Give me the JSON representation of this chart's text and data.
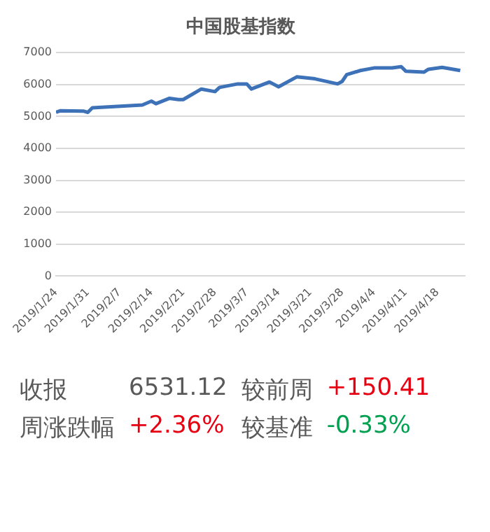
{
  "chart_data": [
    {
      "type": "line",
      "title": "中国股基指数",
      "x": [
        "2019-01-24",
        "2019-01-25",
        "2019-01-30",
        "2019-01-31",
        "2019-02-01",
        "2019-02-12",
        "2019-02-14",
        "2019-02-15",
        "2019-02-18",
        "2019-02-20",
        "2019-02-21",
        "2019-02-25",
        "2019-02-28",
        "2019-03-01",
        "2019-03-05",
        "2019-03-07",
        "2019-03-08",
        "2019-03-12",
        "2019-03-14",
        "2019-03-18",
        "2019-03-22",
        "2019-03-27",
        "2019-03-28",
        "2019-03-29",
        "2019-04-01",
        "2019-04-04",
        "2019-04-08",
        "2019-04-10",
        "2019-04-11",
        "2019-04-15",
        "2019-04-16",
        "2019-04-19",
        "2019-04-23"
      ],
      "series": [
        {
          "color": "#3d72b8",
          "values": [
            5130,
            5180,
            5170,
            5130,
            5270,
            5360,
            5480,
            5400,
            5570,
            5530,
            5530,
            5860,
            5780,
            5910,
            6020,
            6020,
            5860,
            6080,
            5930,
            6240,
            6180,
            6020,
            6100,
            6310,
            6440,
            6520,
            6520,
            6560,
            6420,
            6390,
            6480,
            6540,
            6440
          ]
        }
      ],
      "xlim": [
        "2019-01-24",
        "2019-04-24"
      ],
      "xticks": [
        {
          "value": "2019-01-24",
          "label": "2019/1/24"
        },
        {
          "value": "2019-01-31",
          "label": "2019/1/31"
        },
        {
          "value": "2019-02-07",
          "label": "2019/2/7"
        },
        {
          "value": "2019-02-14",
          "label": "2019/2/14"
        },
        {
          "value": "2019-02-21",
          "label": "2019/2/21"
        },
        {
          "value": "2019-02-28",
          "label": "2019/2/28"
        },
        {
          "value": "2019-03-07",
          "label": "2019/3/7"
        },
        {
          "value": "2019-03-14",
          "label": "2019/3/14"
        },
        {
          "value": "2019-03-21",
          "label": "2019/3/21"
        },
        {
          "value": "2019-03-28",
          "label": "2019/3/28"
        },
        {
          "value": "2019-04-04",
          "label": "2019/4/4"
        },
        {
          "value": "2019-04-11",
          "label": "2019/4/11"
        },
        {
          "value": "2019-04-18",
          "label": "2019/4/18"
        }
      ],
      "ylim": [
        0,
        7000
      ],
      "yticks": [
        0,
        1000,
        2000,
        3000,
        4000,
        5000,
        6000,
        7000
      ],
      "grid": "y",
      "legend": false,
      "marker": "none",
      "line_style": "solid"
    },
    {
      "type": "other",
      "annotations": [
        "收报",
        "6531.12",
        "较前周",
        "+150.41",
        "周涨跌幅",
        "+2.36%",
        "较基准",
        "-0.33%"
      ]
    }
  ]
}
